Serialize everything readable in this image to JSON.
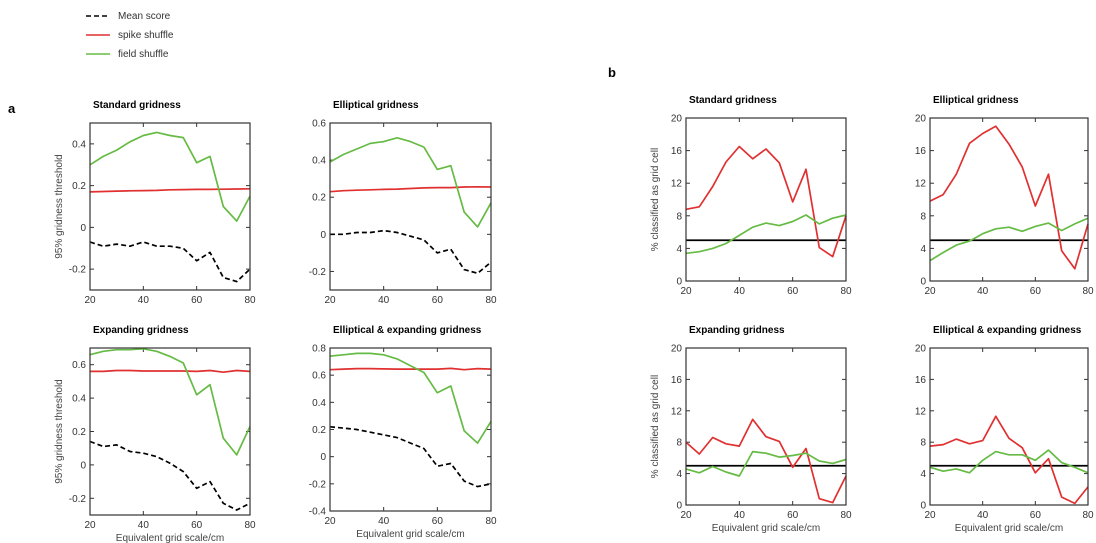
{
  "legend": {
    "entries": [
      {
        "label": "Mean score",
        "color": "#000000",
        "style": "dashed"
      },
      {
        "label": "spike shuffle",
        "color": "#e03030",
        "style": "solid"
      },
      {
        "label": "field shuffle",
        "color": "#66bb44",
        "style": "solid"
      }
    ]
  },
  "panel_letters": {
    "a": "a",
    "b": "b"
  },
  "chart_data": [
    {
      "type": "line",
      "title": "Standard gridness",
      "xlabel": "",
      "ylabel": "95% gridness threshold",
      "xlim": [
        20,
        80
      ],
      "ylim": [
        -0.3,
        0.5
      ],
      "xticks": [
        20,
        40,
        60,
        80
      ],
      "yticks": [
        -0.2,
        0,
        0.2,
        0.4
      ],
      "x": [
        20,
        25,
        30,
        35,
        40,
        45,
        50,
        55,
        60,
        65,
        70,
        75,
        80
      ],
      "series": [
        {
          "name": "Mean score",
          "color": "#000000",
          "style": "dashed",
          "values": [
            -0.07,
            -0.09,
            -0.08,
            -0.09,
            -0.07,
            -0.09,
            -0.09,
            -0.1,
            -0.16,
            -0.12,
            -0.24,
            -0.26,
            -0.2
          ]
        },
        {
          "name": "spike shuffle",
          "color": "#e03030",
          "style": "solid",
          "values": [
            0.17,
            0.172,
            0.174,
            0.175,
            0.176,
            0.177,
            0.18,
            0.181,
            0.182,
            0.182,
            0.183,
            0.184,
            0.185
          ]
        },
        {
          "name": "field shuffle",
          "color": "#66bb44",
          "style": "solid",
          "values": [
            0.3,
            0.34,
            0.37,
            0.41,
            0.44,
            0.455,
            0.44,
            0.43,
            0.31,
            0.34,
            0.1,
            0.03,
            0.15
          ]
        }
      ]
    },
    {
      "type": "line",
      "title": "Elliptical gridness",
      "xlabel": "",
      "ylabel": "",
      "xlim": [
        20,
        80
      ],
      "ylim": [
        -0.3,
        0.6
      ],
      "xticks": [
        20,
        40,
        60,
        80
      ],
      "yticks": [
        -0.2,
        0,
        0.2,
        0.4,
        0.6
      ],
      "x": [
        20,
        25,
        30,
        35,
        40,
        45,
        50,
        55,
        60,
        65,
        70,
        75,
        80
      ],
      "series": [
        {
          "name": "Mean score",
          "color": "#000000",
          "style": "dashed",
          "values": [
            0.0,
            0.0,
            0.01,
            0.01,
            0.02,
            0.01,
            -0.01,
            -0.03,
            -0.1,
            -0.08,
            -0.19,
            -0.21,
            -0.15
          ]
        },
        {
          "name": "spike shuffle",
          "color": "#e03030",
          "style": "solid",
          "values": [
            0.23,
            0.235,
            0.238,
            0.24,
            0.242,
            0.244,
            0.247,
            0.25,
            0.252,
            0.252,
            0.255,
            0.256,
            0.255
          ]
        },
        {
          "name": "field shuffle",
          "color": "#66bb44",
          "style": "solid",
          "values": [
            0.39,
            0.43,
            0.46,
            0.49,
            0.5,
            0.52,
            0.5,
            0.47,
            0.35,
            0.37,
            0.12,
            0.04,
            0.17
          ]
        }
      ]
    },
    {
      "type": "line",
      "title": "Expanding gridness",
      "xlabel": "Equivalent grid scale/cm",
      "ylabel": "95% gridness threshold",
      "xlim": [
        20,
        80
      ],
      "ylim": [
        -0.3,
        0.7
      ],
      "xticks": [
        20,
        40,
        60,
        80
      ],
      "yticks": [
        -0.2,
        0,
        0.2,
        0.4,
        0.6
      ],
      "x": [
        20,
        25,
        30,
        35,
        40,
        45,
        50,
        55,
        60,
        65,
        70,
        75,
        80
      ],
      "series": [
        {
          "name": "Mean score",
          "color": "#000000",
          "style": "dashed",
          "values": [
            0.14,
            0.11,
            0.12,
            0.08,
            0.07,
            0.05,
            0.01,
            -0.04,
            -0.14,
            -0.1,
            -0.23,
            -0.27,
            -0.23
          ]
        },
        {
          "name": "spike shuffle",
          "color": "#e03030",
          "style": "solid",
          "values": [
            0.56,
            0.56,
            0.565,
            0.565,
            0.562,
            0.562,
            0.562,
            0.562,
            0.56,
            0.565,
            0.555,
            0.565,
            0.56
          ]
        },
        {
          "name": "field shuffle",
          "color": "#66bb44",
          "style": "solid",
          "values": [
            0.66,
            0.68,
            0.69,
            0.69,
            0.695,
            0.68,
            0.65,
            0.61,
            0.42,
            0.48,
            0.16,
            0.06,
            0.23
          ]
        }
      ]
    },
    {
      "type": "line",
      "title": "Elliptical & expanding gridness",
      "xlabel": "Equivalent grid scale/cm",
      "ylabel": "",
      "xlim": [
        20,
        80
      ],
      "ylim": [
        -0.4,
        0.8
      ],
      "xticks": [
        20,
        40,
        60,
        80
      ],
      "yticks": [
        -0.4,
        -0.2,
        0,
        0.2,
        0.4,
        0.6,
        0.8
      ],
      "x": [
        20,
        25,
        30,
        35,
        40,
        45,
        50,
        55,
        60,
        65,
        70,
        75,
        80
      ],
      "series": [
        {
          "name": "Mean score",
          "color": "#000000",
          "style": "dashed",
          "values": [
            0.22,
            0.21,
            0.2,
            0.18,
            0.16,
            0.14,
            0.1,
            0.06,
            -0.07,
            -0.05,
            -0.18,
            -0.22,
            -0.2
          ]
        },
        {
          "name": "spike shuffle",
          "color": "#e03030",
          "style": "solid",
          "values": [
            0.64,
            0.645,
            0.648,
            0.648,
            0.646,
            0.645,
            0.645,
            0.645,
            0.645,
            0.65,
            0.64,
            0.648,
            0.645
          ]
        },
        {
          "name": "field shuffle",
          "color": "#66bb44",
          "style": "solid",
          "values": [
            0.74,
            0.75,
            0.76,
            0.76,
            0.75,
            0.72,
            0.67,
            0.62,
            0.47,
            0.52,
            0.19,
            0.1,
            0.26
          ]
        }
      ]
    },
    {
      "type": "line",
      "title": "Standard gridness",
      "xlabel": "",
      "ylabel": "% classified as grid cell",
      "xlim": [
        20,
        80
      ],
      "ylim": [
        0,
        20
      ],
      "xticks": [
        20,
        40,
        60,
        80
      ],
      "yticks": [
        0,
        4,
        8,
        12,
        16,
        20
      ],
      "hline": 5,
      "x": [
        20,
        25,
        30,
        35,
        40,
        45,
        50,
        55,
        60,
        65,
        70,
        75,
        80
      ],
      "series": [
        {
          "name": "spike shuffle",
          "color": "#e03030",
          "style": "solid",
          "values": [
            8.8,
            9.1,
            11.6,
            14.6,
            16.5,
            15.0,
            16.2,
            14.5,
            9.7,
            13.7,
            4.1,
            3.0,
            8.0
          ]
        },
        {
          "name": "field shuffle",
          "color": "#66bb44",
          "style": "solid",
          "values": [
            3.4,
            3.6,
            4.0,
            4.6,
            5.6,
            6.6,
            7.1,
            6.8,
            7.3,
            8.1,
            7.0,
            7.7,
            8.1
          ]
        }
      ]
    },
    {
      "type": "line",
      "title": "Elliptical gridness",
      "xlabel": "",
      "ylabel": "",
      "xlim": [
        20,
        80
      ],
      "ylim": [
        0,
        20
      ],
      "xticks": [
        20,
        40,
        60,
        80
      ],
      "yticks": [
        0,
        4,
        8,
        12,
        16,
        20
      ],
      "hline": 5,
      "x": [
        20,
        25,
        30,
        35,
        40,
        45,
        50,
        55,
        60,
        65,
        70,
        75,
        80
      ],
      "series": [
        {
          "name": "spike shuffle",
          "color": "#e03030",
          "style": "solid",
          "values": [
            9.8,
            10.6,
            13.1,
            16.9,
            18.1,
            19.0,
            16.8,
            14.0,
            9.2,
            13.1,
            3.7,
            1.5,
            7.0
          ]
        },
        {
          "name": "field shuffle",
          "color": "#66bb44",
          "style": "solid",
          "values": [
            2.5,
            3.5,
            4.4,
            4.9,
            5.8,
            6.4,
            6.6,
            6.1,
            6.7,
            7.1,
            6.2,
            7.0,
            7.7
          ]
        }
      ]
    },
    {
      "type": "line",
      "title": "Expanding gridness",
      "xlabel": "Equivalent grid scale/cm",
      "ylabel": "% classified as grid cell",
      "xlim": [
        20,
        80
      ],
      "ylim": [
        0,
        20
      ],
      "xticks": [
        20,
        40,
        60,
        80
      ],
      "yticks": [
        0,
        4,
        8,
        12,
        16,
        20
      ],
      "hline": 5,
      "x": [
        20,
        25,
        30,
        35,
        40,
        45,
        50,
        55,
        60,
        65,
        70,
        75,
        80
      ],
      "series": [
        {
          "name": "spike shuffle",
          "color": "#e03030",
          "style": "solid",
          "values": [
            8.0,
            6.5,
            8.6,
            7.8,
            7.5,
            10.9,
            8.7,
            8.1,
            4.8,
            7.2,
            0.8,
            0.3,
            3.7
          ]
        },
        {
          "name": "field shuffle",
          "color": "#66bb44",
          "style": "solid",
          "values": [
            4.6,
            4.1,
            4.9,
            4.2,
            3.7,
            6.8,
            6.6,
            6.1,
            6.3,
            6.6,
            5.6,
            5.3,
            5.8
          ]
        }
      ]
    },
    {
      "type": "line",
      "title": "Elliptical & expanding gridness",
      "xlabel": "Equivalent grid scale/cm",
      "ylabel": "",
      "xlim": [
        20,
        80
      ],
      "ylim": [
        0,
        20
      ],
      "xticks": [
        20,
        40,
        60,
        80
      ],
      "yticks": [
        0,
        4,
        8,
        12,
        16,
        20
      ],
      "hline": 5,
      "x": [
        20,
        25,
        30,
        35,
        40,
        45,
        50,
        55,
        60,
        65,
        70,
        75,
        80
      ],
      "series": [
        {
          "name": "spike shuffle",
          "color": "#e03030",
          "style": "solid",
          "values": [
            7.5,
            7.7,
            8.4,
            7.8,
            8.2,
            11.3,
            8.5,
            7.3,
            4.1,
            5.9,
            1.0,
            0.2,
            2.3
          ]
        },
        {
          "name": "field shuffle",
          "color": "#66bb44",
          "style": "solid",
          "values": [
            4.8,
            4.3,
            4.6,
            4.1,
            5.7,
            6.8,
            6.4,
            6.4,
            5.7,
            7.0,
            5.4,
            4.8,
            4.1
          ]
        }
      ]
    }
  ]
}
